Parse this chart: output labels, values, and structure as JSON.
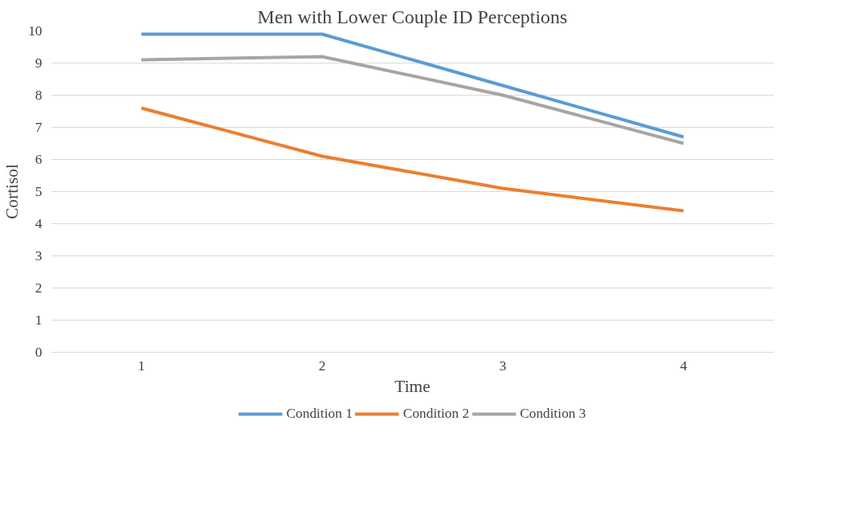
{
  "chart_data": {
    "type": "line",
    "title": "Men with Lower Couple ID Perceptions",
    "xlabel": "Time",
    "ylabel": "Cortisol",
    "categories": [
      "1",
      "2",
      "3",
      "4"
    ],
    "series": [
      {
        "name": "Condition 1",
        "color": "#5b9bd5",
        "values": [
          9.9,
          9.9,
          8.3,
          6.7
        ]
      },
      {
        "name": "Condition 2",
        "color": "#ed7d31",
        "values": [
          7.6,
          6.1,
          5.1,
          4.4
        ]
      },
      {
        "name": "Condition 3",
        "color": "#a5a5a5",
        "values": [
          9.1,
          9.2,
          8,
          6.5
        ]
      }
    ],
    "ylim": [
      0,
      10
    ],
    "yticks": [
      0,
      1,
      2,
      3,
      4,
      5,
      6,
      7,
      8,
      9,
      10
    ],
    "grid": "y",
    "legend": "bottom",
    "marker": "none",
    "line_style": "solid"
  }
}
